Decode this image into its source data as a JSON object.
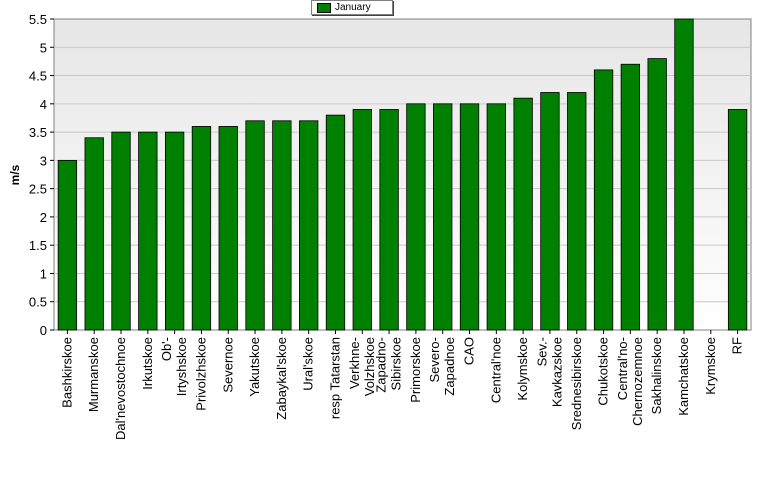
{
  "chart_data": {
    "type": "bar",
    "ylabel": "m/s",
    "xlabel": "",
    "ylim": [
      0,
      5.5
    ],
    "yticks": [
      "0",
      "0.5",
      "1",
      "1.5",
      "2",
      "2.5",
      "3",
      "3.5",
      "4",
      "4.5",
      "5",
      "5.5"
    ],
    "grid": true,
    "legend_position": "top-center",
    "categories": [
      "Bashkirskoe",
      "Murmanskoe",
      "Dal'nevostochnoe",
      "Irkutskoe",
      "Ob'-Irtyshskoe",
      "Privolzhskoe",
      "Severnoe",
      "Yakutskoe",
      "Zabaykal'skoe",
      "Ural'skoe",
      "resp Tatarstan",
      "Verkhne-Volzhskoe",
      "Zapadno-Sibirskoe",
      "Primorskoe",
      "Severo-Zapadnoe",
      "CAO",
      "Central'noe",
      "Kolymskoe",
      "Sev.-Kavkazskoe",
      "Srednesibirskoe",
      "Chukotskoe",
      "Central'no-Chernozemnoe",
      "Sakhalinskoe",
      "Kamchatskoe",
      "Krymskoe",
      "RF"
    ],
    "category_label_lines": [
      [
        "Bashkirskoe"
      ],
      [
        "Murmanskoe"
      ],
      [
        "Dal'nevostochnoe"
      ],
      [
        "Irkutskoe"
      ],
      [
        "Ob'-",
        "Irtyshskoe"
      ],
      [
        "Privolzhskoe"
      ],
      [
        "Severnoe"
      ],
      [
        "Yakutskoe"
      ],
      [
        "Zabaykal'skoe"
      ],
      [
        "Ural'skoe"
      ],
      [
        "resp Tatarstan"
      ],
      [
        "Verkhne-",
        "Volzhskoe"
      ],
      [
        "Zapadno-",
        "Sibirskoe"
      ],
      [
        "Primorskoe"
      ],
      [
        "Severo-",
        "Zapadnoe"
      ],
      [
        "CAO"
      ],
      [
        "Central'noe"
      ],
      [
        "Kolymskoe"
      ],
      [
        "Sev.-",
        "Kavkazskoe"
      ],
      [
        "Srednesibirskoe"
      ],
      [
        "Chukotskoe"
      ],
      [
        "Central'no-",
        "Chernozemnoe"
      ],
      [
        "Sakhalinskoe"
      ],
      [
        "Kamchatskoe"
      ],
      [
        "Krymskoe"
      ],
      [
        "RF"
      ]
    ],
    "series": [
      {
        "name": "January",
        "color": "#008000",
        "values": [
          3.0,
          3.4,
          3.5,
          3.5,
          3.5,
          3.6,
          3.6,
          3.7,
          3.7,
          3.7,
          3.8,
          3.9,
          3.9,
          4.0,
          4.0,
          4.0,
          4.0,
          4.1,
          4.2,
          4.2,
          4.6,
          4.7,
          4.8,
          5.5,
          null,
          3.9
        ]
      }
    ]
  },
  "colors": {
    "plot_bg_top": "#ececec",
    "plot_bg_bottom": "#ffffff",
    "grid": "#c8c8c8",
    "bar": "#008000",
    "bar_outline": "#000000"
  }
}
